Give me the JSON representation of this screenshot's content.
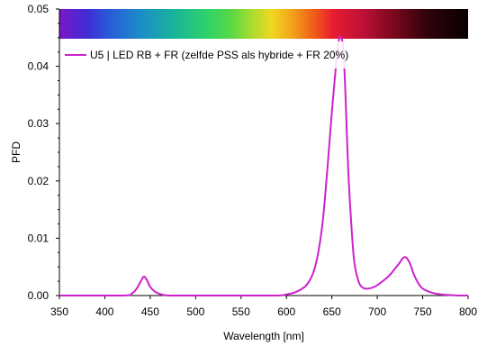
{
  "chart_data": {
    "type": "line",
    "xlabel": "Wavelength [nm]",
    "ylabel": "PFD",
    "xlim": [
      350,
      800
    ],
    "ylim": [
      0,
      0.05
    ],
    "xticks": [
      350,
      400,
      450,
      500,
      550,
      600,
      650,
      700,
      750,
      800
    ],
    "xtick_labels": [
      "350",
      "400",
      "450",
      "500",
      "550",
      "600",
      "650",
      "700",
      "750",
      "800"
    ],
    "yticks": [
      0,
      0.01,
      0.02,
      0.03,
      0.04,
      0.05
    ],
    "ytick_labels": [
      "0.00",
      "0.01",
      "0.02",
      "0.03",
      "0.04",
      "0.05"
    ],
    "grid": false,
    "legend_position": "top-left",
    "spectrum_band": true,
    "series": [
      {
        "name": "U5 | LED RB + FR (zelfde PSS als hybride + FR 20%)",
        "color": "#cc22cc",
        "x": [
          350,
          420,
          430,
          435,
          440,
          443,
          446,
          450,
          455,
          460,
          465,
          470,
          480,
          490,
          500,
          550,
          590,
          600,
          610,
          620,
          625,
          630,
          635,
          640,
          645,
          650,
          655,
          658,
          661,
          663,
          665,
          668,
          672,
          675,
          680,
          685,
          690,
          695,
          700,
          705,
          710,
          715,
          720,
          725,
          728,
          731,
          734,
          737,
          740,
          745,
          750,
          760,
          770,
          780,
          790,
          800
        ],
        "y": [
          0,
          0,
          0.0004,
          0.0012,
          0.0026,
          0.0033,
          0.0028,
          0.0015,
          0.0007,
          0.0003,
          0.0001,
          0,
          0,
          0,
          0,
          0,
          0,
          0.0002,
          0.0006,
          0.0015,
          0.0025,
          0.0042,
          0.0075,
          0.013,
          0.022,
          0.032,
          0.041,
          0.0448,
          0.0448,
          0.042,
          0.035,
          0.022,
          0.011,
          0.0055,
          0.0022,
          0.0013,
          0.0012,
          0.0014,
          0.0018,
          0.0024,
          0.003,
          0.0038,
          0.0048,
          0.0058,
          0.0065,
          0.0067,
          0.0062,
          0.0052,
          0.0038,
          0.0022,
          0.0012,
          0.0005,
          0.0002,
          0.0001,
          0,
          0
        ]
      }
    ]
  }
}
